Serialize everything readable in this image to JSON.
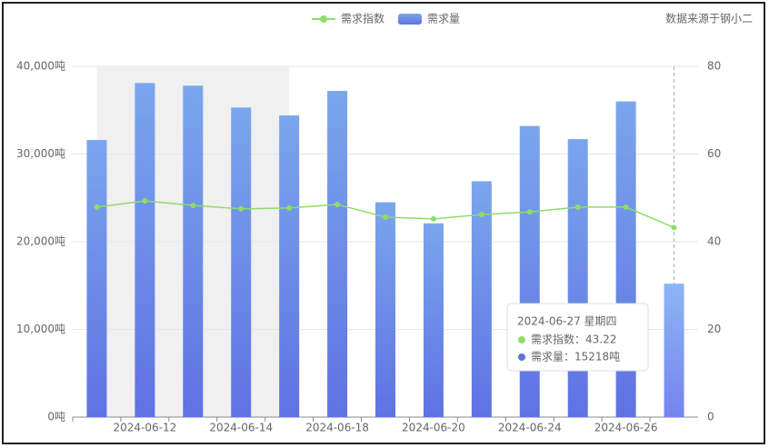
{
  "chart_data": {
    "type": "bar-line",
    "source": "数据来源于钢小二",
    "categories": [
      null,
      "2024-06-12",
      null,
      "2024-06-14",
      null,
      "2024-06-18",
      null,
      "2024-06-20",
      null,
      "2024-06-24",
      null,
      "2024-06-26",
      null
    ],
    "series": [
      {
        "name": "需求指数",
        "type": "line",
        "axis": "y2",
        "color": "#8fdc6a",
        "values": [
          47.9,
          49.3,
          48.3,
          47.5,
          47.7,
          48.5,
          45.6,
          45.2,
          46.2,
          46.8,
          47.9,
          47.9,
          43.22
        ]
      },
      {
        "name": "需求量",
        "type": "bar",
        "color": "#6b8de8",
        "values": [
          31600,
          38100,
          37800,
          35300,
          34400,
          37200,
          24500,
          22100,
          26900,
          33200,
          31700,
          36000,
          15218
        ]
      }
    ],
    "ylim": [
      0,
      40000
    ],
    "yticks": [
      {
        "value": 0,
        "label": "0吨"
      },
      {
        "value": 10000,
        "label": "10,000吨"
      },
      {
        "value": 20000,
        "label": "20,000吨"
      },
      {
        "value": 30000,
        "label": "30,000吨"
      },
      {
        "value": 40000,
        "label": "40,000吨"
      }
    ],
    "y2lim": [
      0,
      80
    ],
    "y2ticks": [
      0,
      20,
      40,
      60,
      80
    ],
    "grid": true,
    "tooltip": {
      "title": "2024-06-27 星期四",
      "items": [
        "需求指数：43.22",
        "需求量：15218吨"
      ]
    }
  }
}
